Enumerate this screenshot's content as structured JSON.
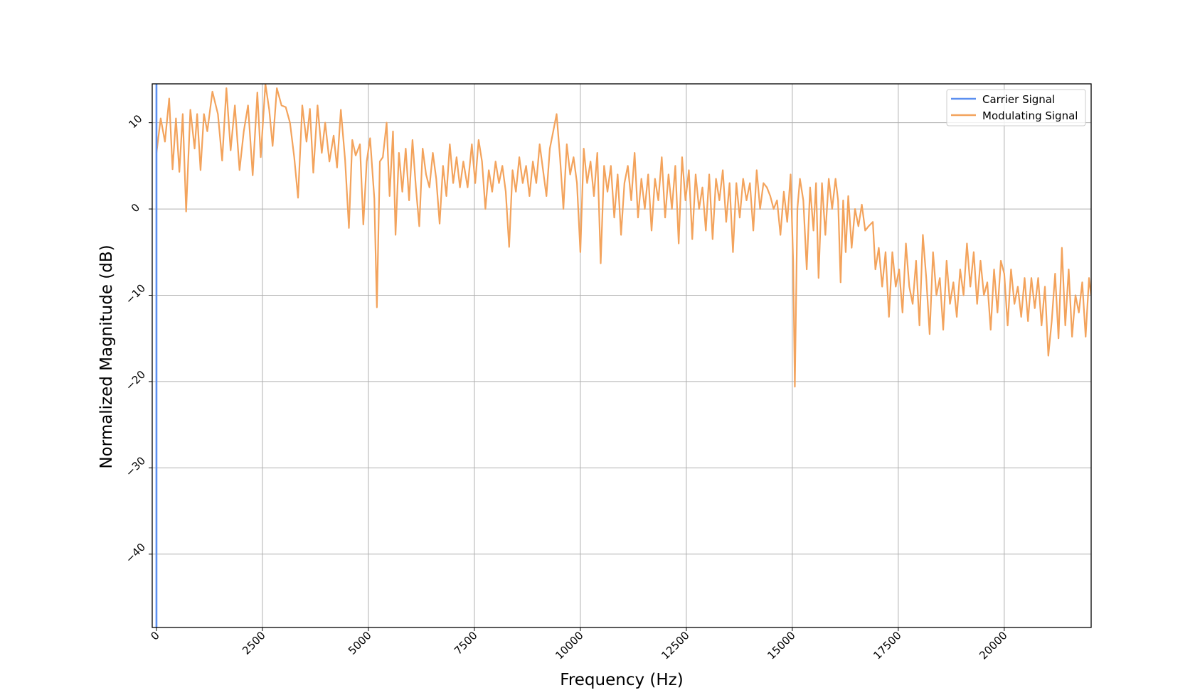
{
  "chart_data": {
    "type": "line",
    "title": "",
    "xlabel": "Frequency (Hz)",
    "ylabel": "Normalized Magnitude (dB)",
    "xlim": [
      -100,
      22050
    ],
    "ylim": [
      -48.5,
      14.5
    ],
    "xticks": [
      0,
      2500,
      5000,
      7500,
      10000,
      12500,
      15000,
      17500,
      20000
    ],
    "xtick_labels": [
      "0",
      "2500",
      "5000",
      "7500",
      "10000",
      "12500",
      "15000",
      "17500",
      "20000"
    ],
    "yticks": [
      10,
      0,
      -10,
      -20,
      -30,
      -40
    ],
    "ytick_labels": [
      "10",
      "0",
      "−10",
      "−20",
      "−30",
      "−40"
    ],
    "grid": true,
    "legend_position": "top-right",
    "series": [
      {
        "name": "Carrier Signal",
        "color": "#5b8ff0",
        "points": [
          [
            0,
            -48.5
          ],
          [
            0,
            14.5
          ]
        ]
      },
      {
        "name": "Modulating Signal",
        "color": "#f3a35c",
        "points": [
          [
            0,
            6.5
          ],
          [
            100,
            10.5
          ],
          [
            200,
            7.8
          ],
          [
            300,
            12.8
          ],
          [
            380,
            4.6
          ],
          [
            460,
            10.5
          ],
          [
            540,
            4.3
          ],
          [
            620,
            11
          ],
          [
            700,
            -0.3
          ],
          [
            800,
            11.5
          ],
          [
            900,
            7
          ],
          [
            960,
            11
          ],
          [
            1040,
            4.5
          ],
          [
            1120,
            11
          ],
          [
            1200,
            9
          ],
          [
            1320,
            13.6
          ],
          [
            1450,
            11
          ],
          [
            1550,
            5.6
          ],
          [
            1650,
            14
          ],
          [
            1750,
            6.8
          ],
          [
            1850,
            12
          ],
          [
            1960,
            4.5
          ],
          [
            2060,
            9
          ],
          [
            2160,
            12
          ],
          [
            2270,
            3.9
          ],
          [
            2380,
            13.5
          ],
          [
            2460,
            6
          ],
          [
            2570,
            14.5
          ],
          [
            2660,
            11.5
          ],
          [
            2740,
            7.3
          ],
          [
            2840,
            14
          ],
          [
            2950,
            12
          ],
          [
            3050,
            11.8
          ],
          [
            3150,
            10
          ],
          [
            3250,
            6
          ],
          [
            3340,
            1.3
          ],
          [
            3440,
            12
          ],
          [
            3540,
            7.8
          ],
          [
            3620,
            11.6
          ],
          [
            3700,
            4.2
          ],
          [
            3800,
            12
          ],
          [
            3900,
            6.5
          ],
          [
            3980,
            10
          ],
          [
            4080,
            5.5
          ],
          [
            4180,
            8.5
          ],
          [
            4260,
            4.8
          ],
          [
            4350,
            11.5
          ],
          [
            4450,
            5.7
          ],
          [
            4540,
            -2.2
          ],
          [
            4620,
            8
          ],
          [
            4700,
            6.2
          ],
          [
            4800,
            7.5
          ],
          [
            4880,
            -1.8
          ],
          [
            4960,
            5.5
          ],
          [
            5040,
            8.2
          ],
          [
            5140,
            1.2
          ],
          [
            5200,
            -11.4
          ],
          [
            5270,
            5.5
          ],
          [
            5340,
            6
          ],
          [
            5430,
            10
          ],
          [
            5500,
            1.5
          ],
          [
            5580,
            9
          ],
          [
            5640,
            -3
          ],
          [
            5720,
            6.5
          ],
          [
            5800,
            2
          ],
          [
            5880,
            7
          ],
          [
            5960,
            1
          ],
          [
            6040,
            8
          ],
          [
            6120,
            2.5
          ],
          [
            6200,
            -2
          ],
          [
            6280,
            7
          ],
          [
            6360,
            4
          ],
          [
            6440,
            2.5
          ],
          [
            6520,
            6.5
          ],
          [
            6600,
            3.5
          ],
          [
            6680,
            -1.7
          ],
          [
            6760,
            5
          ],
          [
            6840,
            1.5
          ],
          [
            6920,
            7.5
          ],
          [
            7000,
            3
          ],
          [
            7080,
            6
          ],
          [
            7160,
            2.5
          ],
          [
            7240,
            5.5
          ],
          [
            7340,
            2.5
          ],
          [
            7440,
            7.5
          ],
          [
            7520,
            3
          ],
          [
            7600,
            8
          ],
          [
            7680,
            5.5
          ],
          [
            7760,
            0
          ],
          [
            7840,
            4.5
          ],
          [
            7920,
            2
          ],
          [
            8000,
            5.5
          ],
          [
            8080,
            3
          ],
          [
            8160,
            5
          ],
          [
            8240,
            2
          ],
          [
            8320,
            -4.4
          ],
          [
            8400,
            4.5
          ],
          [
            8480,
            2
          ],
          [
            8560,
            6
          ],
          [
            8640,
            3
          ],
          [
            8720,
            5
          ],
          [
            8800,
            1.5
          ],
          [
            8880,
            5.5
          ],
          [
            8960,
            3
          ],
          [
            9040,
            7.5
          ],
          [
            9120,
            4.5
          ],
          [
            9200,
            1.5
          ],
          [
            9280,
            7
          ],
          [
            9360,
            9
          ],
          [
            9440,
            11
          ],
          [
            9520,
            6
          ],
          [
            9600,
            0
          ],
          [
            9680,
            7.5
          ],
          [
            9760,
            4
          ],
          [
            9840,
            6
          ],
          [
            9920,
            3
          ],
          [
            10000,
            -5
          ],
          [
            10080,
            7
          ],
          [
            10160,
            3
          ],
          [
            10240,
            5.5
          ],
          [
            10320,
            1.5
          ],
          [
            10400,
            6.5
          ],
          [
            10480,
            -6.3
          ],
          [
            10560,
            5
          ],
          [
            10640,
            2
          ],
          [
            10720,
            5
          ],
          [
            10800,
            -1
          ],
          [
            10880,
            4
          ],
          [
            10960,
            -3
          ],
          [
            11040,
            3
          ],
          [
            11120,
            5
          ],
          [
            11200,
            1
          ],
          [
            11280,
            6.5
          ],
          [
            11360,
            -1
          ],
          [
            11440,
            3.5
          ],
          [
            11520,
            0
          ],
          [
            11600,
            4
          ],
          [
            11680,
            -2.5
          ],
          [
            11760,
            3.5
          ],
          [
            11840,
            1
          ],
          [
            11920,
            6
          ],
          [
            12000,
            -1
          ],
          [
            12080,
            4
          ],
          [
            12160,
            0
          ],
          [
            12240,
            5
          ],
          [
            12320,
            -4
          ],
          [
            12400,
            6
          ],
          [
            12480,
            1
          ],
          [
            12560,
            4.5
          ],
          [
            12640,
            -3.5
          ],
          [
            12720,
            4
          ],
          [
            12800,
            0
          ],
          [
            12880,
            2.5
          ],
          [
            12960,
            -2.5
          ],
          [
            13040,
            4
          ],
          [
            13120,
            -3.5
          ],
          [
            13200,
            3.5
          ],
          [
            13280,
            1
          ],
          [
            13360,
            4.5
          ],
          [
            13440,
            -1.5
          ],
          [
            13520,
            3
          ],
          [
            13600,
            -5
          ],
          [
            13680,
            3
          ],
          [
            13760,
            -1
          ],
          [
            13840,
            3.5
          ],
          [
            13920,
            1
          ],
          [
            14000,
            3
          ],
          [
            14080,
            -2.5
          ],
          [
            14160,
            4.5
          ],
          [
            14240,
            0
          ],
          [
            14320,
            3
          ],
          [
            14400,
            2.5
          ],
          [
            14480,
            1.5
          ],
          [
            14560,
            0
          ],
          [
            14640,
            1
          ],
          [
            14720,
            -3
          ],
          [
            14800,
            2
          ],
          [
            14880,
            -1.5
          ],
          [
            14960,
            4
          ],
          [
            15020,
            -6
          ],
          [
            15060,
            -20.6
          ],
          [
            15120,
            0
          ],
          [
            15180,
            3.5
          ],
          [
            15260,
            1
          ],
          [
            15340,
            -7
          ],
          [
            15420,
            2.5
          ],
          [
            15500,
            -2.5
          ],
          [
            15560,
            3
          ],
          [
            15620,
            -8
          ],
          [
            15700,
            3
          ],
          [
            15780,
            -3
          ],
          [
            15860,
            3.5
          ],
          [
            15940,
            0
          ],
          [
            16020,
            3.5
          ],
          [
            16080,
            1
          ],
          [
            16140,
            -8.5
          ],
          [
            16200,
            1
          ],
          [
            16260,
            -5
          ],
          [
            16320,
            1.5
          ],
          [
            16400,
            -4.5
          ],
          [
            16480,
            0
          ],
          [
            16560,
            -2
          ],
          [
            16640,
            0.5
          ],
          [
            16720,
            -2.5
          ],
          [
            16800,
            -2
          ],
          [
            16900,
            -1.5
          ],
          [
            16960,
            -7
          ],
          [
            17040,
            -4.5
          ],
          [
            17120,
            -9
          ],
          [
            17200,
            -5
          ],
          [
            17280,
            -12.5
          ],
          [
            17360,
            -5
          ],
          [
            17440,
            -9
          ],
          [
            17520,
            -7
          ],
          [
            17600,
            -12
          ],
          [
            17680,
            -4
          ],
          [
            17760,
            -9
          ],
          [
            17840,
            -11
          ],
          [
            17920,
            -6
          ],
          [
            18000,
            -13.5
          ],
          [
            18080,
            -3
          ],
          [
            18160,
            -8
          ],
          [
            18240,
            -14.5
          ],
          [
            18320,
            -5
          ],
          [
            18400,
            -10
          ],
          [
            18480,
            -8
          ],
          [
            18560,
            -14
          ],
          [
            18640,
            -6
          ],
          [
            18720,
            -11
          ],
          [
            18800,
            -8.5
          ],
          [
            18880,
            -12.5
          ],
          [
            18960,
            -7
          ],
          [
            19040,
            -10
          ],
          [
            19120,
            -4
          ],
          [
            19200,
            -9
          ],
          [
            19280,
            -5
          ],
          [
            19360,
            -11
          ],
          [
            19440,
            -6
          ],
          [
            19520,
            -10
          ],
          [
            19600,
            -8.5
          ],
          [
            19680,
            -14
          ],
          [
            19760,
            -7
          ],
          [
            19840,
            -12
          ],
          [
            19920,
            -6
          ],
          [
            20000,
            -7.5
          ],
          [
            20080,
            -13.5
          ],
          [
            20160,
            -7
          ],
          [
            20240,
            -11
          ],
          [
            20320,
            -9
          ],
          [
            20400,
            -12.5
          ],
          [
            20480,
            -8
          ],
          [
            20560,
            -13
          ],
          [
            20640,
            -8
          ],
          [
            20720,
            -11.5
          ],
          [
            20800,
            -8
          ],
          [
            20880,
            -13.5
          ],
          [
            20960,
            -9
          ],
          [
            21040,
            -17
          ],
          [
            21120,
            -13
          ],
          [
            21200,
            -7.5
          ],
          [
            21280,
            -15
          ],
          [
            21360,
            -4.5
          ],
          [
            21440,
            -13.5
          ],
          [
            21520,
            -7
          ],
          [
            21600,
            -14.8
          ],
          [
            21680,
            -10
          ],
          [
            21760,
            -12
          ],
          [
            21840,
            -8.5
          ],
          [
            21920,
            -14.8
          ],
          [
            22000,
            -8
          ],
          [
            22050,
            -10
          ]
        ]
      }
    ]
  }
}
